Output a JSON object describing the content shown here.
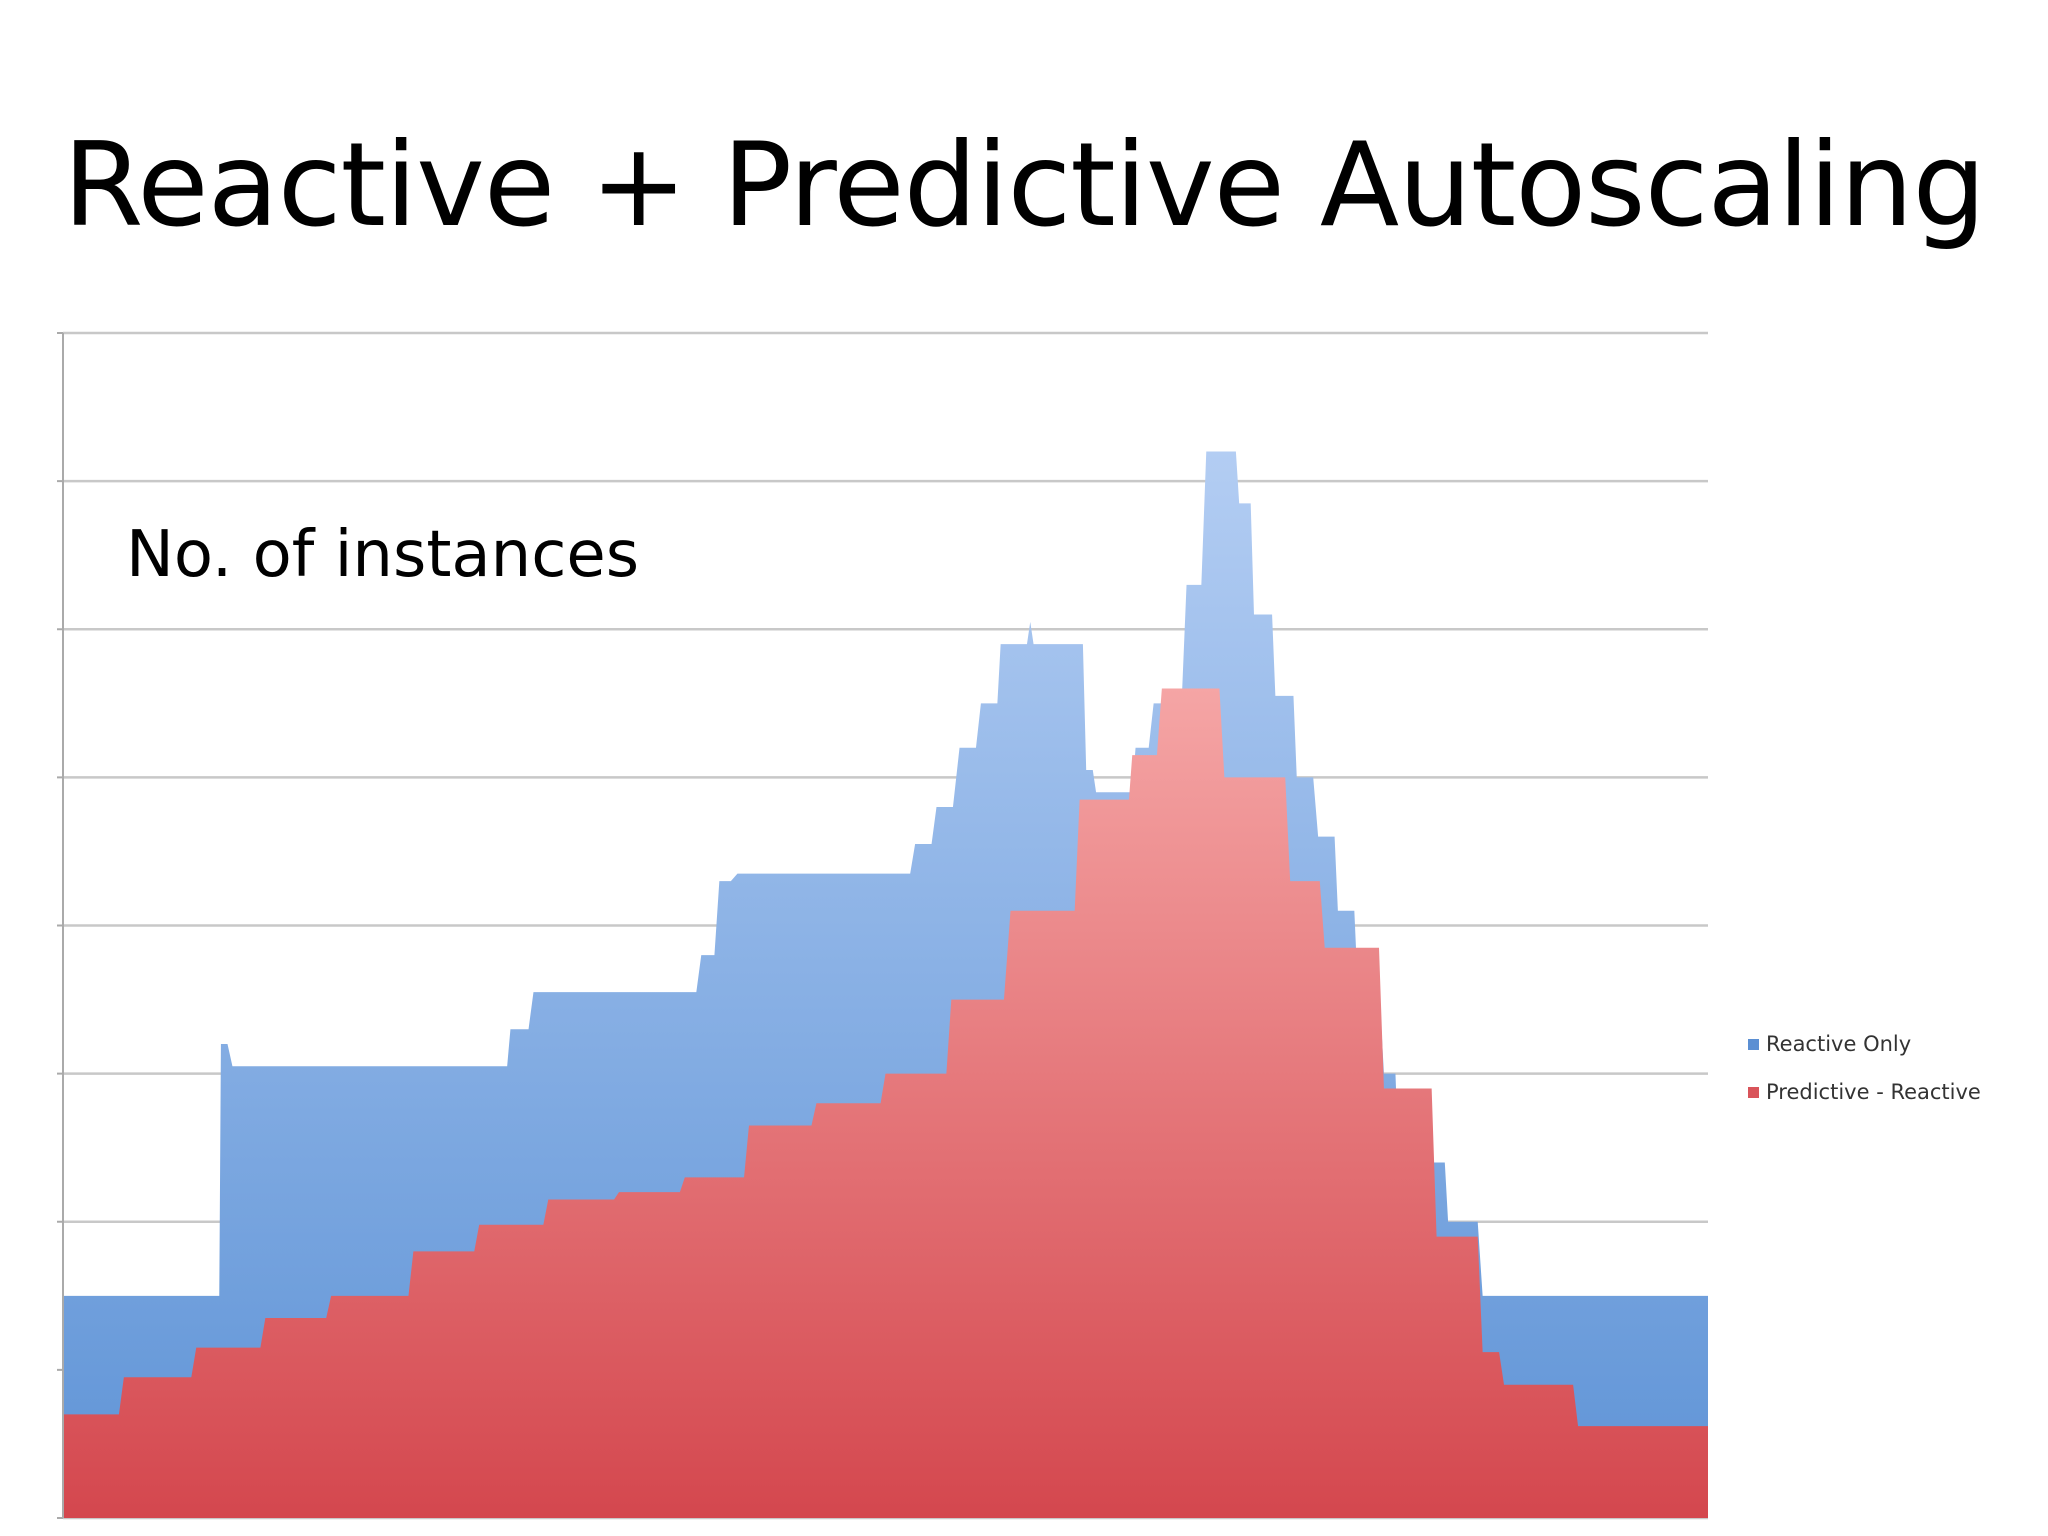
{
  "slide": {
    "title": "Reactive + Predictive Autoscaling"
  },
  "chart_data": {
    "type": "area",
    "title": "",
    "ylabel": "No. of instances",
    "xlabel": "",
    "x": [
      0,
      4,
      8,
      12,
      16,
      20,
      24,
      28,
      32,
      36,
      40,
      44,
      48,
      52,
      56,
      60,
      64,
      68,
      72,
      76,
      80,
      84,
      88,
      92,
      96,
      100
    ],
    "xlim": [
      0,
      100
    ],
    "ylim": [
      0,
      80
    ],
    "y_ticks": [
      0,
      10,
      20,
      30,
      40,
      50,
      60,
      70,
      80
    ],
    "grid": true,
    "legend_position": "right",
    "series": [
      {
        "name": "Reactive Only",
        "color": "#7ba7df",
        "values": [
          15,
          15,
          15,
          15,
          15,
          15,
          15,
          15,
          15,
          15,
          15,
          15,
          15,
          15,
          15,
          15,
          15,
          15,
          15,
          15,
          15,
          15,
          15,
          15,
          15,
          15
        ],
        "step_values": [
          [
            0,
            15
          ],
          [
            9.5,
            15
          ],
          [
            9.6,
            32
          ],
          [
            10,
            32
          ],
          [
            10.3,
            30.5
          ],
          [
            27,
            30.5
          ],
          [
            27.2,
            33
          ],
          [
            28.3,
            33
          ],
          [
            28.6,
            35.5
          ],
          [
            38.5,
            35.5
          ],
          [
            38.8,
            38
          ],
          [
            39.6,
            38
          ],
          [
            39.9,
            43
          ],
          [
            40.6,
            43
          ],
          [
            41,
            43.5
          ],
          [
            51.5,
            43.5
          ],
          [
            51.8,
            45.5
          ],
          [
            52.8,
            45.5
          ],
          [
            53.1,
            48
          ],
          [
            54.1,
            48
          ],
          [
            54.5,
            52
          ],
          [
            55.5,
            52
          ],
          [
            55.8,
            55
          ],
          [
            56.8,
            55
          ],
          [
            57,
            59
          ],
          [
            58.6,
            59
          ],
          [
            58.8,
            60.5
          ],
          [
            59,
            59
          ],
          [
            62,
            59
          ],
          [
            62.2,
            50.5
          ],
          [
            62.6,
            50.5
          ],
          [
            62.8,
            49
          ],
          [
            65,
            49
          ],
          [
            65.2,
            52
          ],
          [
            66,
            52
          ],
          [
            66.3,
            55
          ],
          [
            68,
            55
          ],
          [
            68.3,
            63
          ],
          [
            69.2,
            63
          ],
          [
            69.5,
            72
          ],
          [
            71.3,
            72
          ],
          [
            71.5,
            68.5
          ],
          [
            72.2,
            68.5
          ],
          [
            72.4,
            61
          ],
          [
            73.5,
            61
          ],
          [
            73.7,
            55.5
          ],
          [
            74.8,
            55.5
          ],
          [
            75,
            50
          ],
          [
            76,
            50
          ],
          [
            76.3,
            46
          ],
          [
            77.3,
            46
          ],
          [
            77.5,
            41
          ],
          [
            78.5,
            41
          ],
          [
            78.7,
            36
          ],
          [
            80,
            36
          ],
          [
            80.3,
            30
          ],
          [
            81,
            30
          ],
          [
            81.2,
            24
          ],
          [
            84,
            24
          ],
          [
            84.2,
            20
          ],
          [
            86,
            20
          ],
          [
            86.3,
            15
          ],
          [
            100,
            15
          ]
        ]
      },
      {
        "name": "Predictive - Reactive",
        "color": "#e06565",
        "step_values": [
          [
            0,
            7
          ],
          [
            3.4,
            7
          ],
          [
            3.7,
            9.5
          ],
          [
            7.8,
            9.5
          ],
          [
            8.1,
            11.5
          ],
          [
            12,
            11.5
          ],
          [
            12.3,
            13.5
          ],
          [
            16,
            13.5
          ],
          [
            16.3,
            15
          ],
          [
            21,
            15
          ],
          [
            21.3,
            18
          ],
          [
            25,
            18
          ],
          [
            25.3,
            19.8
          ],
          [
            29.2,
            19.8
          ],
          [
            29.5,
            21.5
          ],
          [
            33.5,
            21.5
          ],
          [
            33.8,
            22
          ],
          [
            37.5,
            22
          ],
          [
            37.8,
            23
          ],
          [
            41.4,
            23
          ],
          [
            41.7,
            26.5
          ],
          [
            45.5,
            26.5
          ],
          [
            45.8,
            28
          ],
          [
            49.7,
            28
          ],
          [
            50,
            30
          ],
          [
            53.7,
            30
          ],
          [
            54,
            35
          ],
          [
            57.2,
            35
          ],
          [
            57.6,
            41
          ],
          [
            61.5,
            41
          ],
          [
            61.8,
            48.5
          ],
          [
            64.8,
            48.5
          ],
          [
            65,
            51.5
          ],
          [
            66.5,
            51.5
          ],
          [
            66.8,
            56
          ],
          [
            70.3,
            56
          ],
          [
            70.6,
            50
          ],
          [
            74.3,
            50
          ],
          [
            74.6,
            43
          ],
          [
            76.4,
            43
          ],
          [
            76.7,
            38.5
          ],
          [
            80,
            38.5
          ],
          [
            80.3,
            29
          ],
          [
            83.2,
            29
          ],
          [
            83.5,
            19
          ],
          [
            86,
            19
          ],
          [
            86.3,
            11.2
          ],
          [
            87.3,
            11.2
          ],
          [
            87.6,
            9
          ],
          [
            91.8,
            9
          ],
          [
            92.1,
            6.2
          ],
          [
            100,
            6.2
          ]
        ]
      }
    ]
  }
}
